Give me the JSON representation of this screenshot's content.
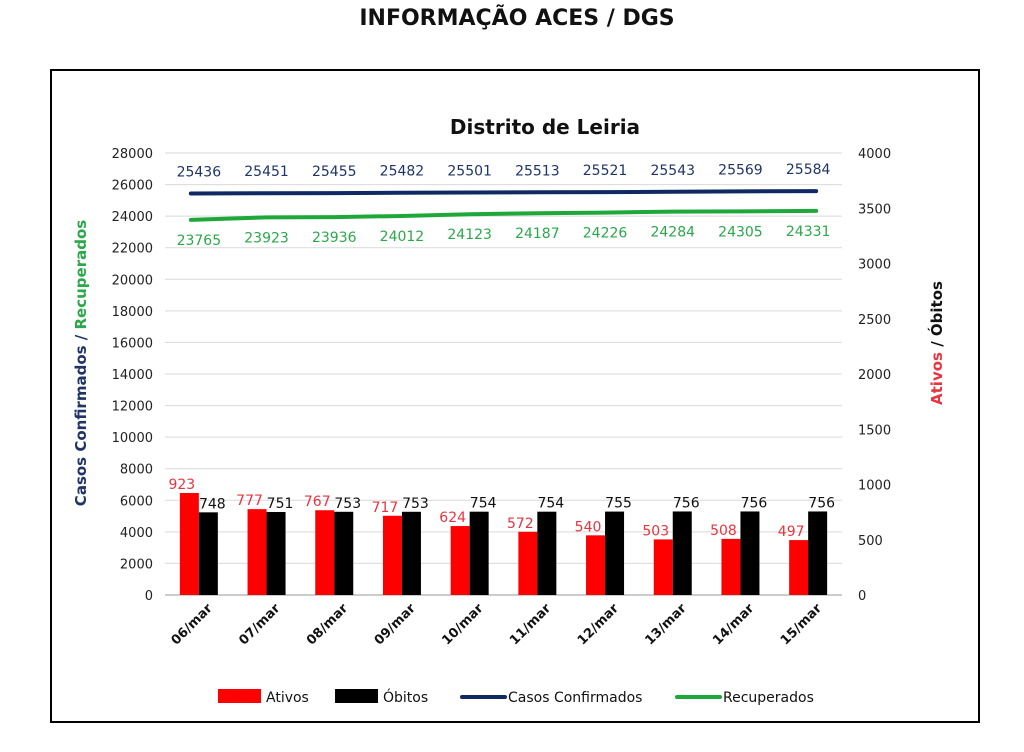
{
  "header": {
    "title": "INFORMAÇÃO ACES / DGS"
  },
  "chart_data": {
    "type": "bar",
    "title": "Distrito de Leiria",
    "categories": [
      "06/mar",
      "07/mar",
      "08/mar",
      "09/mar",
      "10/mar",
      "11/mar",
      "12/mar",
      "13/mar",
      "14/mar",
      "15/mar"
    ],
    "y_left": {
      "label_parts": [
        "Casos Confirmados",
        " / ",
        "Recuperados"
      ],
      "range": [
        0,
        28000
      ],
      "step": 2000
    },
    "y_right": {
      "label_parts": [
        "Ativos",
        " / ",
        "Óbitos"
      ],
      "range": [
        0,
        4000
      ],
      "step": 500
    },
    "series": [
      {
        "name": "Ativos",
        "type": "bar",
        "axis": "right",
        "color": "#ff0000",
        "label_color": "#e8343f",
        "values": [
          923,
          777,
          767,
          717,
          624,
          572,
          540,
          503,
          508,
          497
        ]
      },
      {
        "name": "Óbitos",
        "type": "bar",
        "axis": "right",
        "color": "#000000",
        "label_color": "#111111",
        "values": [
          748,
          751,
          753,
          753,
          754,
          754,
          755,
          756,
          756,
          756
        ]
      },
      {
        "name": "Casos Confirmados",
        "type": "line",
        "axis": "left",
        "color": "#0f2a63",
        "label_color": "#1f3566",
        "values": [
          25436,
          25451,
          25455,
          25482,
          25501,
          25513,
          25521,
          25543,
          25569,
          25584
        ]
      },
      {
        "name": "Recuperados",
        "type": "line",
        "axis": "left",
        "color": "#1fa83a",
        "label_color": "#2aa84a",
        "values": [
          23765,
          23923,
          23936,
          24012,
          24123,
          24187,
          24226,
          24284,
          24305,
          24331
        ]
      }
    ],
    "legend_position": "bottom",
    "grid": true,
    "left_label_colors": [
      "#1f3566",
      "#1f3566",
      "#2aa84a"
    ],
    "right_label_colors": [
      "#e8343f",
      "#111111",
      "#111111"
    ]
  }
}
